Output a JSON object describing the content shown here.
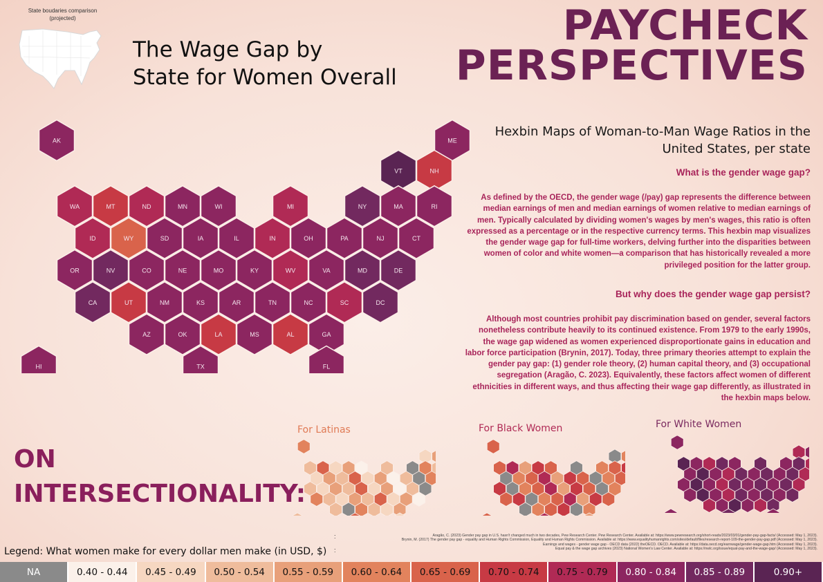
{
  "inset": {
    "caption_line1": "State boudaries comparison",
    "caption_line2": "(projected)"
  },
  "title": {
    "line1": "The Wage Gap by",
    "line2": "State for Women Overall"
  },
  "brand": {
    "line1": "PAYCHECK",
    "line2": "PERSPECTIVES"
  },
  "subtitle": "Hexbin Maps of Woman-to-Man Wage Ratios in the United States, per state",
  "sections": {
    "q1": "What is the gender wage gap?",
    "p1": "As defined by the OECD, the gender wage (/pay) gap represents the difference between median earnings of men and median earnings of women relative to median earnings of men. Typically calculated by dividing women's wages by men's wages, this ratio is often expressed as a percentage or in the respective currency terms. This hexbin map visualizes the gender wage gap for full-time workers, delving further into the disparities between women of color and white women—a comparison that has historically revealed a more privileged position for the latter group.",
    "q2": "But why does the gender wage gap persist?",
    "p2": "Although most countries prohibit pay discrimination based on gender, several factors nonetheless contribute heavily to its continued existence. From 1979 to the early 1990s, the wage gap widened as women experienced disproportionate gains in education and labor force participation (Brynin, 2017). Today, three primary theories attempt to explain the gender pay gap: (1) gender role theory, (2) human capital theory, and (3) occupational segregation (Aragão, C. 2023). Equivalently, these factors affect women of different ethnicities in different ways, and thus affecting their wage gap differently, as illustrated in the hexbin maps below."
  },
  "intersectionality": {
    "line1": "ON",
    "line2": "INTERSECTIONALITY:"
  },
  "small_maps": {
    "latinas": "For Latinas",
    "black": "For  Black Women",
    "white": "For  White Women"
  },
  "references": [
    "Aragão, C. (2023) Gender pay gap in U.S. hasn't changed much in two decades, Pew Research Center. Pew Research Center. Available at: https://www.pewresearch.org/short-reads/2023/03/01/gender-pay-gap-facts/ (Accessed: May 1, 2023).",
    "Brynin, M. (2017) The gender pay gap - equality and Human Rights Commission, Equality and Human Rights Commission. Available at: https://www.equalityhumanrights.com/sites/default/files/research-report-109-the-gender-pay-gap.pdf (Accessed: May 1, 2023).",
    "Earnings and wages - gender wage gap - OECD data (2022) theOECD. OECD. Available at: https://data.oecd.org/earnwage/gender-wage-gap.htm (Accessed: May 1, 2023).",
    "Equal pay & the wage gap archives (2023) National Women's Law Center. Available at: https://nwlc.org/issue/equal-pay-and-the-wage-gap/ (Accessed: May 1, 2023)."
  ],
  "legend": {
    "title": "Legend: What women make for every dollar men make (in USD, $)",
    "bins": [
      {
        "label": "NA",
        "color": "#8a8a8a",
        "text": "#ffffff"
      },
      {
        "label": "0.40 - 0.44",
        "color": "#fbf1ea",
        "text": "#111111"
      },
      {
        "label": "0.45 - 0.49",
        "color": "#f6d7c1",
        "text": "#111111"
      },
      {
        "label": "0.50 - 0.54",
        "color": "#efbc9c",
        "text": "#111111"
      },
      {
        "label": "0.55 - 0.59",
        "color": "#e8a07a",
        "text": "#111111"
      },
      {
        "label": "0.60 - 0.64",
        "color": "#e2835d",
        "text": "#111111"
      },
      {
        "label": "0.65 - 0.69",
        "color": "#d9634b",
        "text": "#111111"
      },
      {
        "label": "0.70 - 0.74",
        "color": "#c73a44",
        "text": "#111111"
      },
      {
        "label": "0.75 - 0.79",
        "color": "#b02a55",
        "text": "#111111"
      },
      {
        "label": "0.80 - 0.84",
        "color": "#8c2660",
        "text": "#ffffff"
      },
      {
        "label": "0.85 - 0.89",
        "color": "#72295f",
        "text": "#ffffff"
      },
      {
        "label": "0.90+",
        "color": "#5a2453",
        "text": "#ffffff"
      }
    ]
  },
  "chart_data": {
    "type": "hexbin-map",
    "states": [
      {
        "abbr": "AK",
        "bin": "0.80 - 0.84"
      },
      {
        "abbr": "ME",
        "bin": "0.80 - 0.84"
      },
      {
        "abbr": "VT",
        "bin": "0.90+"
      },
      {
        "abbr": "NH",
        "bin": "0.70 - 0.74"
      },
      {
        "abbr": "WA",
        "bin": "0.75 - 0.79"
      },
      {
        "abbr": "MT",
        "bin": "0.70 - 0.74"
      },
      {
        "abbr": "ND",
        "bin": "0.75 - 0.79"
      },
      {
        "abbr": "MN",
        "bin": "0.80 - 0.84"
      },
      {
        "abbr": "WI",
        "bin": "0.80 - 0.84"
      },
      {
        "abbr": "MI",
        "bin": "0.75 - 0.79"
      },
      {
        "abbr": "NY",
        "bin": "0.85 - 0.89"
      },
      {
        "abbr": "MA",
        "bin": "0.80 - 0.84"
      },
      {
        "abbr": "RI",
        "bin": "0.80 - 0.84"
      },
      {
        "abbr": "ID",
        "bin": "0.75 - 0.79"
      },
      {
        "abbr": "WY",
        "bin": "0.65 - 0.69"
      },
      {
        "abbr": "SD",
        "bin": "0.80 - 0.84"
      },
      {
        "abbr": "IA",
        "bin": "0.80 - 0.84"
      },
      {
        "abbr": "IL",
        "bin": "0.80 - 0.84"
      },
      {
        "abbr": "IN",
        "bin": "0.75 - 0.79"
      },
      {
        "abbr": "OH",
        "bin": "0.80 - 0.84"
      },
      {
        "abbr": "PA",
        "bin": "0.80 - 0.84"
      },
      {
        "abbr": "NJ",
        "bin": "0.80 - 0.84"
      },
      {
        "abbr": "CT",
        "bin": "0.80 - 0.84"
      },
      {
        "abbr": "OR",
        "bin": "0.80 - 0.84"
      },
      {
        "abbr": "NV",
        "bin": "0.85 - 0.89"
      },
      {
        "abbr": "CO",
        "bin": "0.80 - 0.84"
      },
      {
        "abbr": "NE",
        "bin": "0.80 - 0.84"
      },
      {
        "abbr": "MO",
        "bin": "0.80 - 0.84"
      },
      {
        "abbr": "KY",
        "bin": "0.80 - 0.84"
      },
      {
        "abbr": "WV",
        "bin": "0.75 - 0.79"
      },
      {
        "abbr": "VA",
        "bin": "0.80 - 0.84"
      },
      {
        "abbr": "MD",
        "bin": "0.85 - 0.89"
      },
      {
        "abbr": "DE",
        "bin": "0.85 - 0.89"
      },
      {
        "abbr": "CA",
        "bin": "0.85 - 0.89"
      },
      {
        "abbr": "UT",
        "bin": "0.70 - 0.74"
      },
      {
        "abbr": "NM",
        "bin": "0.80 - 0.84"
      },
      {
        "abbr": "KS",
        "bin": "0.80 - 0.84"
      },
      {
        "abbr": "AR",
        "bin": "0.80 - 0.84"
      },
      {
        "abbr": "TN",
        "bin": "0.80 - 0.84"
      },
      {
        "abbr": "NC",
        "bin": "0.80 - 0.84"
      },
      {
        "abbr": "SC",
        "bin": "0.75 - 0.79"
      },
      {
        "abbr": "DC",
        "bin": "0.85 - 0.89"
      },
      {
        "abbr": "AZ",
        "bin": "0.80 - 0.84"
      },
      {
        "abbr": "OK",
        "bin": "0.80 - 0.84"
      },
      {
        "abbr": "LA",
        "bin": "0.70 - 0.74"
      },
      {
        "abbr": "MS",
        "bin": "0.80 - 0.84"
      },
      {
        "abbr": "AL",
        "bin": "0.70 - 0.74"
      },
      {
        "abbr": "GA",
        "bin": "0.80 - 0.84"
      },
      {
        "abbr": "HI",
        "bin": "0.80 - 0.84"
      },
      {
        "abbr": "TX",
        "bin": "0.80 - 0.84"
      },
      {
        "abbr": "FL",
        "bin": "0.80 - 0.84"
      }
    ]
  }
}
